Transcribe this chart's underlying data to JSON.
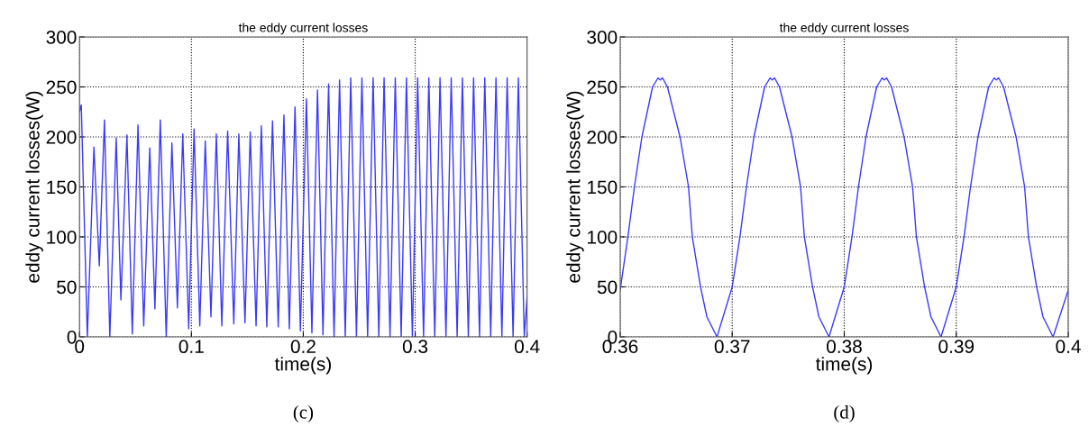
{
  "chart_data": [
    {
      "type": "line",
      "title": "the eddy current losses",
      "xlabel": "time(s)",
      "ylabel": "eddy current losses(W)",
      "xlim": [
        0,
        0.4
      ],
      "xticks": [
        0,
        0.1,
        0.2,
        0.3,
        0.4
      ],
      "ylim": [
        0,
        300
      ],
      "yticks": [
        0,
        50,
        100,
        150,
        200,
        250,
        300
      ],
      "grid": true,
      "line_style": "solid",
      "annotations": [
        "(c)"
      ],
      "series": [
        {
          "color": "#3a3aff",
          "x": [
            0,
            0.0016,
            0.007,
            0.0129,
            0.0177,
            0.0223,
            0.0271,
            0.0328,
            0.037,
            0.0424,
            0.0472,
            0.0523,
            0.0574,
            0.0628,
            0.0674,
            0.0722,
            0.0775,
            0.0826,
            0.0875,
            0.0923,
            0.0976,
            0.1024,
            0.1075,
            0.1124,
            0.1175,
            0.1223,
            0.1272,
            0.1324,
            0.1379,
            0.1424,
            0.1479,
            0.1526,
            0.1578,
            0.1625,
            0.1674,
            0.1725,
            0.1776,
            0.1827,
            0.1875,
            0.1926,
            0.1974,
            0.2028,
            0.2077,
            0.2127,
            0.2176,
            0.2226,
            0.2275,
            0.2324,
            0.2375,
            0.2424,
            0.2475,
            0.2524,
            0.2575,
            0.2624,
            0.2675,
            0.2722,
            0.2775,
            0.2822,
            0.2875,
            0.2922,
            0.2975,
            0.3022,
            0.3075,
            0.3122,
            0.3175,
            0.3222,
            0.3275,
            0.3322,
            0.3375,
            0.3422,
            0.3475,
            0.3522,
            0.3575,
            0.3622,
            0.3675,
            0.3722,
            0.3775,
            0.3822,
            0.3875,
            0.3922,
            0.3975,
            0.4
          ],
          "values": [
            225,
            232,
            0,
            190,
            71,
            217,
            0,
            199,
            37,
            202,
            3,
            212,
            11,
            189,
            28,
            217,
            0,
            194,
            29,
            203,
            8,
            208,
            11,
            196,
            20,
            203,
            11,
            206,
            13,
            203,
            14,
            205,
            11,
            211,
            10,
            216,
            10,
            222,
            8,
            230,
            6,
            238,
            4,
            247,
            2,
            253,
            0,
            257,
            0,
            259,
            0,
            259,
            0,
            259,
            0,
            259,
            0,
            259,
            0,
            259,
            0,
            259,
            0,
            259,
            0,
            259,
            0,
            259,
            0,
            259,
            0,
            259,
            0,
            259,
            0,
            259,
            0,
            259,
            0,
            259,
            0,
            40
          ]
        }
      ]
    },
    {
      "type": "line",
      "title": "the eddy current losses",
      "xlabel": "time(s)",
      "ylabel": "eddy current losses(W)",
      "xlim": [
        0.36,
        0.4
      ],
      "xticks": [
        0.36,
        0.37,
        0.38,
        0.39,
        0.4
      ],
      "ylim": [
        0,
        300
      ],
      "yticks": [
        0,
        50,
        100,
        150,
        200,
        250,
        300
      ],
      "grid": true,
      "line_style": "solid",
      "annotations": [
        "(d)"
      ],
      "series": [
        {
          "color": "#3a3aff",
          "x": [
            0.36,
            0.36069,
            0.36127,
            0.36194,
            0.36289,
            0.36338,
            0.36358,
            0.36378,
            0.36422,
            0.36534,
            0.3661,
            0.36644,
            0.36717,
            0.36774,
            0.36864,
            0.37,
            0.37069,
            0.37127,
            0.37194,
            0.37289,
            0.37338,
            0.37358,
            0.37378,
            0.37422,
            0.37534,
            0.3761,
            0.37644,
            0.37717,
            0.37774,
            0.37864,
            0.38,
            0.38069,
            0.38127,
            0.38194,
            0.38289,
            0.38338,
            0.38358,
            0.38378,
            0.38422,
            0.38534,
            0.3861,
            0.38644,
            0.38717,
            0.38774,
            0.38864,
            0.39,
            0.39069,
            0.39127,
            0.39194,
            0.39289,
            0.39338,
            0.39358,
            0.39378,
            0.39422,
            0.39534,
            0.3961,
            0.39644,
            0.39717,
            0.39774,
            0.39864,
            0.4
          ],
          "values": [
            47,
            100,
            150,
            200,
            250,
            259,
            257,
            259,
            250,
            200,
            150,
            100,
            50,
            20,
            0,
            50,
            100,
            150,
            200,
            250,
            259,
            257,
            259,
            250,
            200,
            150,
            100,
            50,
            20,
            0,
            50,
            100,
            150,
            200,
            250,
            259,
            257,
            259,
            250,
            200,
            150,
            100,
            50,
            20,
            0,
            50,
            100,
            150,
            200,
            250,
            259,
            257,
            259,
            250,
            200,
            150,
            100,
            50,
            20,
            0,
            47
          ]
        }
      ]
    }
  ]
}
